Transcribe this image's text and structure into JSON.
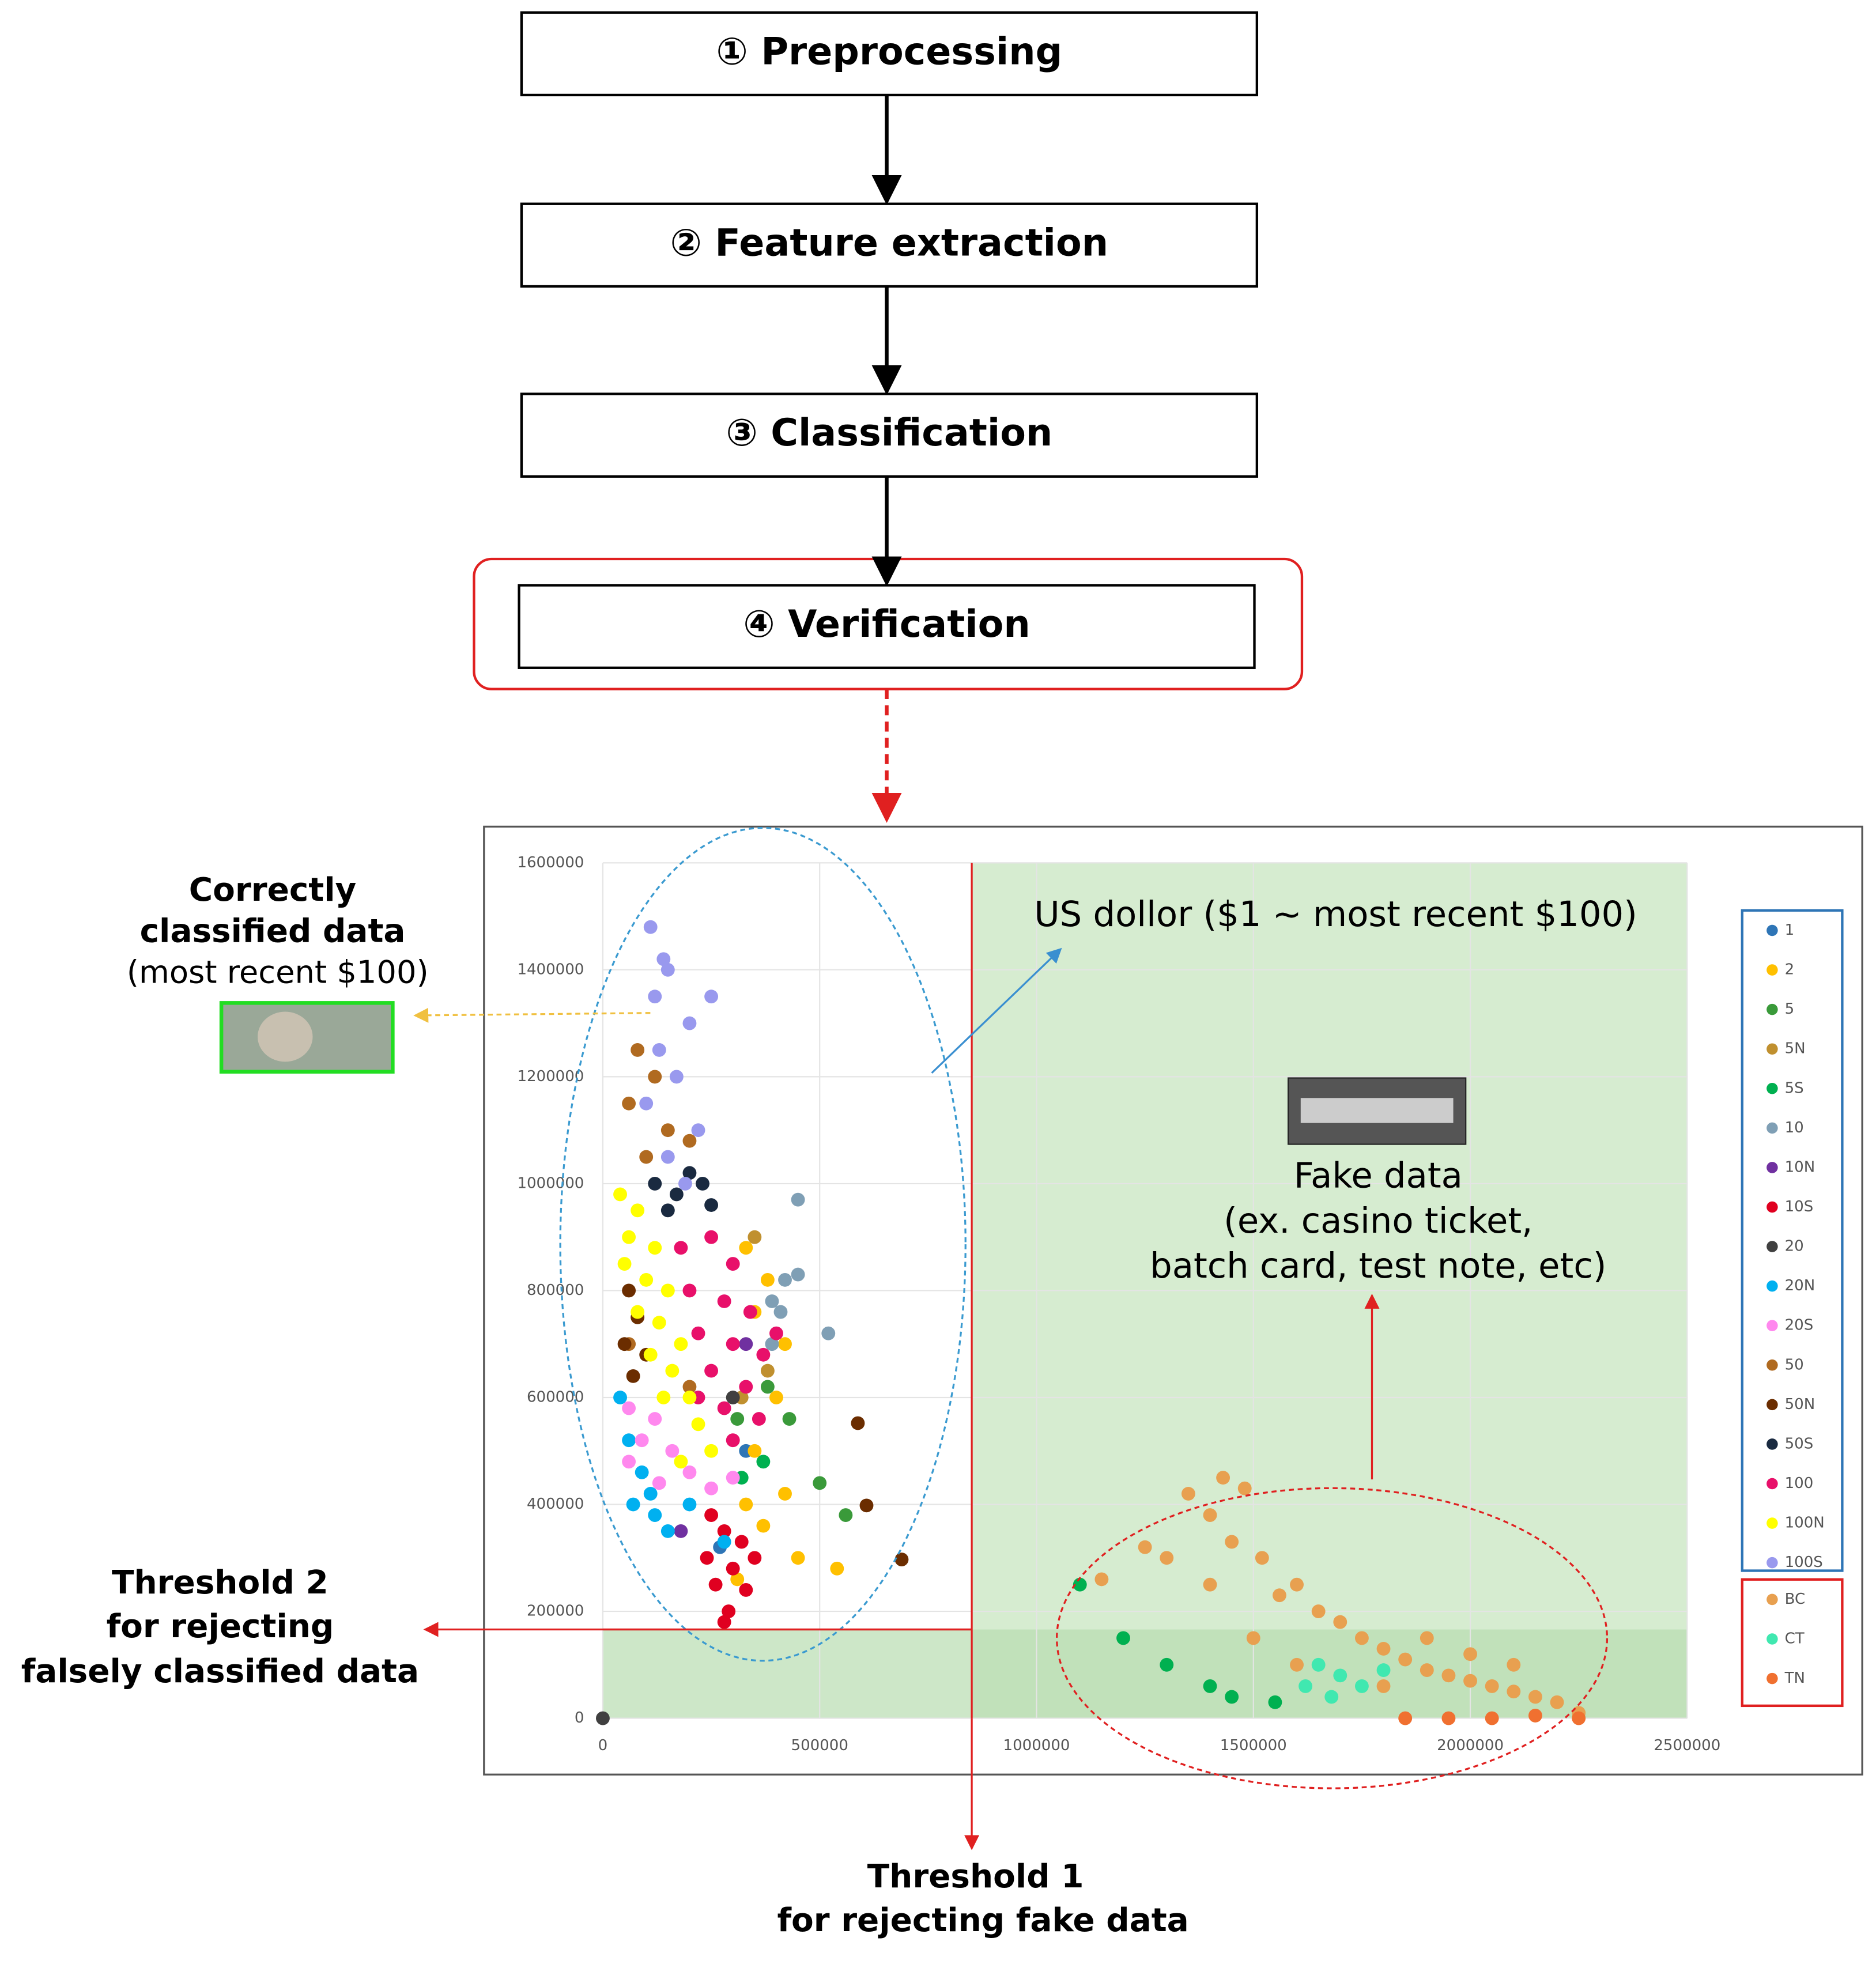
{
  "steps": [
    "① Preprocessing",
    "② Feature extraction",
    "③ Classification",
    "④ Verification"
  ],
  "annotations": {
    "correct": [
      "Correctly",
      "classified data",
      "(most recent $100)"
    ],
    "us_dollar": "US dollor ($1 ~ most recent $100)",
    "fake": [
      "Fake data",
      "(ex. casino ticket,",
      "batch card, test note, etc)"
    ],
    "threshold2": [
      "Threshold 2",
      "for rejecting",
      "falsely classified data"
    ],
    "threshold1": [
      "Threshold 1",
      "for rejecting fake data"
    ]
  },
  "chart_data": {
    "type": "scatter",
    "xlim": [
      0,
      2500000
    ],
    "ylim": [
      0,
      1600000
    ],
    "xticks": [
      0,
      500000,
      1000000,
      1500000,
      2000000,
      2500000
    ],
    "yticks": [
      0,
      200000,
      400000,
      600000,
      800000,
      1000000,
      1200000,
      1400000,
      1600000
    ],
    "grid": true,
    "series": [
      {
        "name": "1",
        "color": "#2e75b6",
        "x": [
          270000,
          330000
        ],
        "y": [
          320000,
          500000
        ]
      },
      {
        "name": "2",
        "color": "#ffc000",
        "x": [
          330000,
          380000,
          350000,
          420000,
          400000,
          350000,
          420000,
          370000,
          450000,
          540000,
          310000,
          330000
        ],
        "y": [
          880000,
          820000,
          760000,
          700000,
          600000,
          500000,
          420000,
          360000,
          300000,
          280000,
          260000,
          400000
        ]
      },
      {
        "name": "5",
        "color": "#3a9a3a",
        "x": [
          430000,
          500000,
          560000,
          380000,
          310000
        ],
        "y": [
          560000,
          440000,
          380000,
          620000,
          560000
        ]
      },
      {
        "name": "5N",
        "color": "#c0902f",
        "x": [
          350000,
          380000,
          320000
        ],
        "y": [
          900000,
          650000,
          600000
        ]
      },
      {
        "name": "5S",
        "color": "#00b050",
        "x": [
          370000,
          320000,
          1100000,
          1200000,
          1300000,
          1400000,
          1450000,
          1550000
        ],
        "y": [
          480000,
          450000,
          250000,
          150000,
          100000,
          60000,
          40000,
          30000
        ]
      },
      {
        "name": "10",
        "color": "#7f9fb5",
        "x": [
          420000,
          450000,
          390000,
          410000,
          450000,
          520000,
          390000
        ],
        "y": [
          820000,
          830000,
          780000,
          760000,
          970000,
          720000,
          700000
        ]
      },
      {
        "name": "10N",
        "color": "#7030a0",
        "x": [
          180000,
          330000
        ],
        "y": [
          350000,
          700000
        ]
      },
      {
        "name": "10S",
        "color": "#e00020",
        "x": [
          250000,
          280000,
          320000,
          240000,
          300000,
          260000,
          330000,
          290000,
          280000,
          350000
        ],
        "y": [
          380000,
          350000,
          330000,
          300000,
          280000,
          250000,
          240000,
          200000,
          180000,
          300000
        ]
      },
      {
        "name": "20",
        "color": "#404040",
        "x": [
          0,
          300000
        ],
        "y": [
          0,
          600000
        ]
      },
      {
        "name": "20N",
        "color": "#00b0f0",
        "x": [
          40000,
          60000,
          90000,
          70000,
          120000,
          150000,
          110000,
          200000,
          280000
        ],
        "y": [
          600000,
          520000,
          460000,
          400000,
          380000,
          350000,
          420000,
          400000,
          330000
        ]
      },
      {
        "name": "20S",
        "color": "#ff88ee",
        "x": [
          60000,
          120000,
          90000,
          160000,
          60000,
          200000,
          130000,
          250000,
          300000
        ],
        "y": [
          580000,
          560000,
          520000,
          500000,
          480000,
          460000,
          440000,
          430000,
          450000
        ]
      },
      {
        "name": "50",
        "color": "#b06a20",
        "x": [
          80000,
          120000,
          60000,
          150000,
          100000,
          200000,
          60000,
          200000
        ],
        "y": [
          1250000,
          1200000,
          1150000,
          1100000,
          1050000,
          1080000,
          700000,
          620000
        ]
      },
      {
        "name": "50N",
        "color": "#6b2d00",
        "x": [
          60000,
          80000,
          50000,
          100000,
          70000,
          588000,
          608000,
          689000
        ],
        "y": [
          800000,
          750000,
          700000,
          680000,
          640000,
          552000,
          398000,
          297000
        ]
      },
      {
        "name": "50S",
        "color": "#1a2a40",
        "x": [
          120000,
          170000,
          200000,
          150000,
          250000,
          230000
        ],
        "y": [
          1000000,
          980000,
          1020000,
          950000,
          960000,
          1000000
        ]
      },
      {
        "name": "100",
        "color": "#e8106a",
        "x": [
          180000,
          250000,
          300000,
          200000,
          280000,
          340000,
          220000,
          300000,
          370000,
          250000,
          330000,
          280000,
          360000,
          300000,
          220000,
          400000
        ],
        "y": [
          880000,
          900000,
          850000,
          800000,
          780000,
          760000,
          720000,
          700000,
          680000,
          650000,
          620000,
          580000,
          560000,
          520000,
          600000,
          720000
        ]
      },
      {
        "name": "100N",
        "color": "#ffff00",
        "x": [
          40000,
          80000,
          60000,
          120000,
          50000,
          100000,
          150000,
          80000,
          130000,
          180000,
          110000,
          160000,
          200000,
          140000,
          220000,
          250000,
          180000
        ],
        "y": [
          980000,
          950000,
          900000,
          880000,
          850000,
          820000,
          800000,
          760000,
          740000,
          700000,
          680000,
          650000,
          600000,
          600000,
          550000,
          500000,
          480000
        ]
      },
      {
        "name": "100S",
        "color": "#9999ee",
        "x": [
          110000,
          150000,
          120000,
          200000,
          130000,
          170000,
          100000,
          220000,
          150000,
          190000,
          250000,
          140000
        ],
        "y": [
          1480000,
          1400000,
          1350000,
          1300000,
          1250000,
          1200000,
          1150000,
          1100000,
          1050000,
          1000000,
          1350000,
          1420000
        ]
      },
      {
        "name": "BC",
        "color": "#e8a050",
        "x": [
          1150000,
          1250000,
          1300000,
          1350000,
          1400000,
          1430000,
          1480000,
          1450000,
          1520000,
          1400000,
          1560000,
          1600000,
          1650000,
          1700000,
          1750000,
          1800000,
          1850000,
          1900000,
          1950000,
          2000000,
          2050000,
          2100000,
          2150000,
          2200000,
          2250000,
          1500000,
          1600000,
          1900000,
          2000000,
          1800000,
          2100000
        ],
        "y": [
          260000,
          320000,
          300000,
          420000,
          380000,
          450000,
          430000,
          330000,
          300000,
          250000,
          230000,
          250000,
          200000,
          180000,
          150000,
          130000,
          110000,
          90000,
          80000,
          70000,
          60000,
          50000,
          40000,
          30000,
          10000,
          150000,
          100000,
          150000,
          120000,
          60000,
          100000
        ]
      },
      {
        "name": "CT",
        "color": "#40e8b0",
        "x": [
          1650000,
          1700000,
          1750000,
          1680000,
          1800000,
          1620000
        ],
        "y": [
          100000,
          80000,
          60000,
          40000,
          90000,
          60000
        ]
      },
      {
        "name": "TN",
        "color": "#f07030",
        "x": [
          1850000,
          1950000,
          2050000,
          2150000,
          2250000
        ],
        "y": [
          0,
          0,
          0,
          5000,
          0
        ]
      }
    ]
  }
}
